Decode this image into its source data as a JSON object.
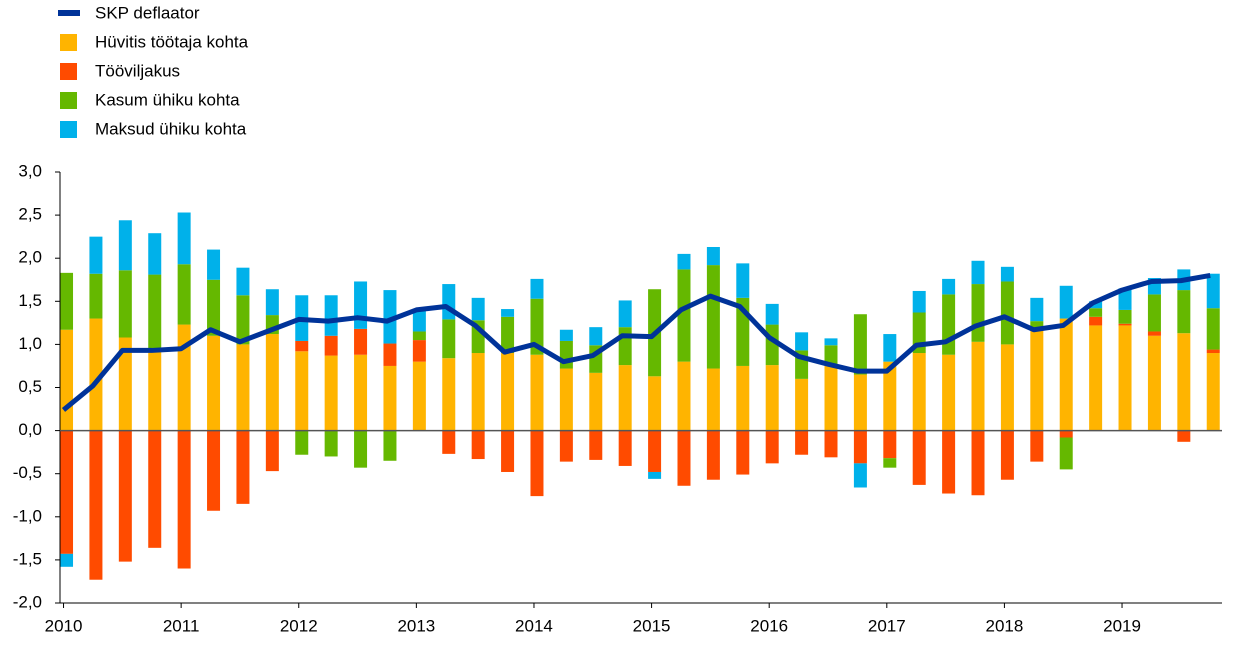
{
  "chart_data": {
    "type": "bar",
    "x": [
      2010,
      2010.25,
      2010.5,
      2010.75,
      2011,
      2011.25,
      2011.5,
      2011.75,
      2012,
      2012.25,
      2012.5,
      2012.75,
      2013,
      2013.25,
      2013.5,
      2013.75,
      2014,
      2014.25,
      2014.5,
      2014.75,
      2015,
      2015.25,
      2015.5,
      2015.75,
      2016,
      2016.25,
      2016.5,
      2016.75,
      2017,
      2017.25,
      2017.5,
      2017.75,
      2018,
      2018.25,
      2018.5,
      2018.75,
      2019,
      2019.25,
      2019.5,
      2019.75
    ],
    "series": [
      {
        "name": "SKP deflaator",
        "type": "line",
        "color": "#003399",
        "values": [
          0.24,
          0.52,
          0.93,
          0.93,
          0.95,
          1.17,
          1.03,
          1.16,
          1.29,
          1.27,
          1.31,
          1.27,
          1.4,
          1.44,
          1.22,
          0.91,
          1.0,
          0.8,
          0.87,
          1.1,
          1.09,
          1.4,
          1.56,
          1.44,
          1.08,
          0.86,
          0.77,
          0.69,
          0.69,
          0.99,
          1.03,
          1.21,
          1.32,
          1.17,
          1.22,
          1.48,
          1.63,
          1.73,
          1.74,
          1.8
        ]
      },
      {
        "name": "Hüvitis töötaja kohta",
        "type": "bar",
        "color": "#ffb400",
        "values": [
          1.17,
          1.3,
          1.08,
          0.95,
          1.23,
          1.1,
          1.0,
          1.12,
          0.92,
          0.87,
          0.88,
          0.75,
          0.8,
          0.84,
          0.9,
          0.9,
          0.88,
          0.72,
          0.67,
          0.76,
          0.63,
          0.8,
          0.72,
          0.75,
          0.76,
          0.6,
          0.76,
          0.65,
          0.8,
          0.9,
          0.88,
          1.03,
          1.0,
          1.17,
          1.3,
          1.22,
          1.22,
          1.1,
          1.13,
          0.9
        ]
      },
      {
        "name": "Tööviljakus",
        "type": "bar",
        "color": "#ff4b00",
        "values": [
          -1.43,
          -1.73,
          -1.52,
          -1.36,
          -1.6,
          -0.93,
          -0.85,
          -0.47,
          0.12,
          0.23,
          0.3,
          0.26,
          0.25,
          -0.27,
          -0.33,
          -0.48,
          -0.76,
          -0.36,
          -0.34,
          -0.41,
          -0.48,
          -0.64,
          -0.57,
          -0.51,
          -0.38,
          -0.28,
          -0.31,
          -0.38,
          -0.32,
          -0.63,
          -0.73,
          -0.75,
          -0.57,
          -0.36,
          -0.08,
          0.1,
          0.02,
          0.05,
          -0.13,
          0.04
        ]
      },
      {
        "name": "Kasum ühiku kohta",
        "type": "bar",
        "color": "#65b800",
        "values": [
          0.66,
          0.52,
          0.78,
          0.86,
          0.7,
          0.65,
          0.57,
          0.22,
          -0.28,
          -0.3,
          -0.43,
          -0.35,
          0.1,
          0.45,
          0.38,
          0.42,
          0.65,
          0.32,
          0.32,
          0.44,
          1.01,
          1.07,
          1.2,
          0.79,
          0.47,
          0.33,
          0.23,
          0.7,
          -0.11,
          0.47,
          0.7,
          0.67,
          0.73,
          0.1,
          -0.37,
          0.1,
          0.16,
          0.43,
          0.5,
          0.48
        ]
      },
      {
        "name": "Maksud ühiku kohta",
        "type": "bar",
        "color": "#00b1ea",
        "values": [
          -0.15,
          0.43,
          0.58,
          0.48,
          0.6,
          0.35,
          0.32,
          0.3,
          0.53,
          0.47,
          0.55,
          0.62,
          0.25,
          0.41,
          0.26,
          0.09,
          0.23,
          0.13,
          0.21,
          0.31,
          -0.08,
          0.18,
          0.21,
          0.4,
          0.24,
          0.21,
          0.08,
          -0.28,
          0.32,
          0.25,
          0.18,
          0.27,
          0.17,
          0.27,
          0.38,
          0.08,
          0.25,
          0.19,
          0.24,
          0.4
        ]
      }
    ],
    "xlim": [
      2009.97,
      2019.85
    ],
    "xticks": [
      2010,
      2011,
      2012,
      2013,
      2014,
      2015,
      2016,
      2017,
      2018,
      2019
    ],
    "ylim": [
      -2,
      3
    ],
    "yticks": [
      {
        "value": -2,
        "label": "-2,0"
      },
      {
        "value": -1.5,
        "label": "-1,5"
      },
      {
        "value": -1,
        "label": "-1,0"
      },
      {
        "value": -0.5,
        "label": "-0,5"
      },
      {
        "value": 0,
        "label": "0,0"
      },
      {
        "value": 0.5,
        "label": "0,5"
      },
      {
        "value": 1,
        "label": "1,0"
      },
      {
        "value": 1.5,
        "label": "1,5"
      },
      {
        "value": 2,
        "label": "2,0"
      },
      {
        "value": 2.5,
        "label": "2,5"
      },
      {
        "value": 3,
        "label": "3,0"
      }
    ],
    "legend": "top-left"
  }
}
